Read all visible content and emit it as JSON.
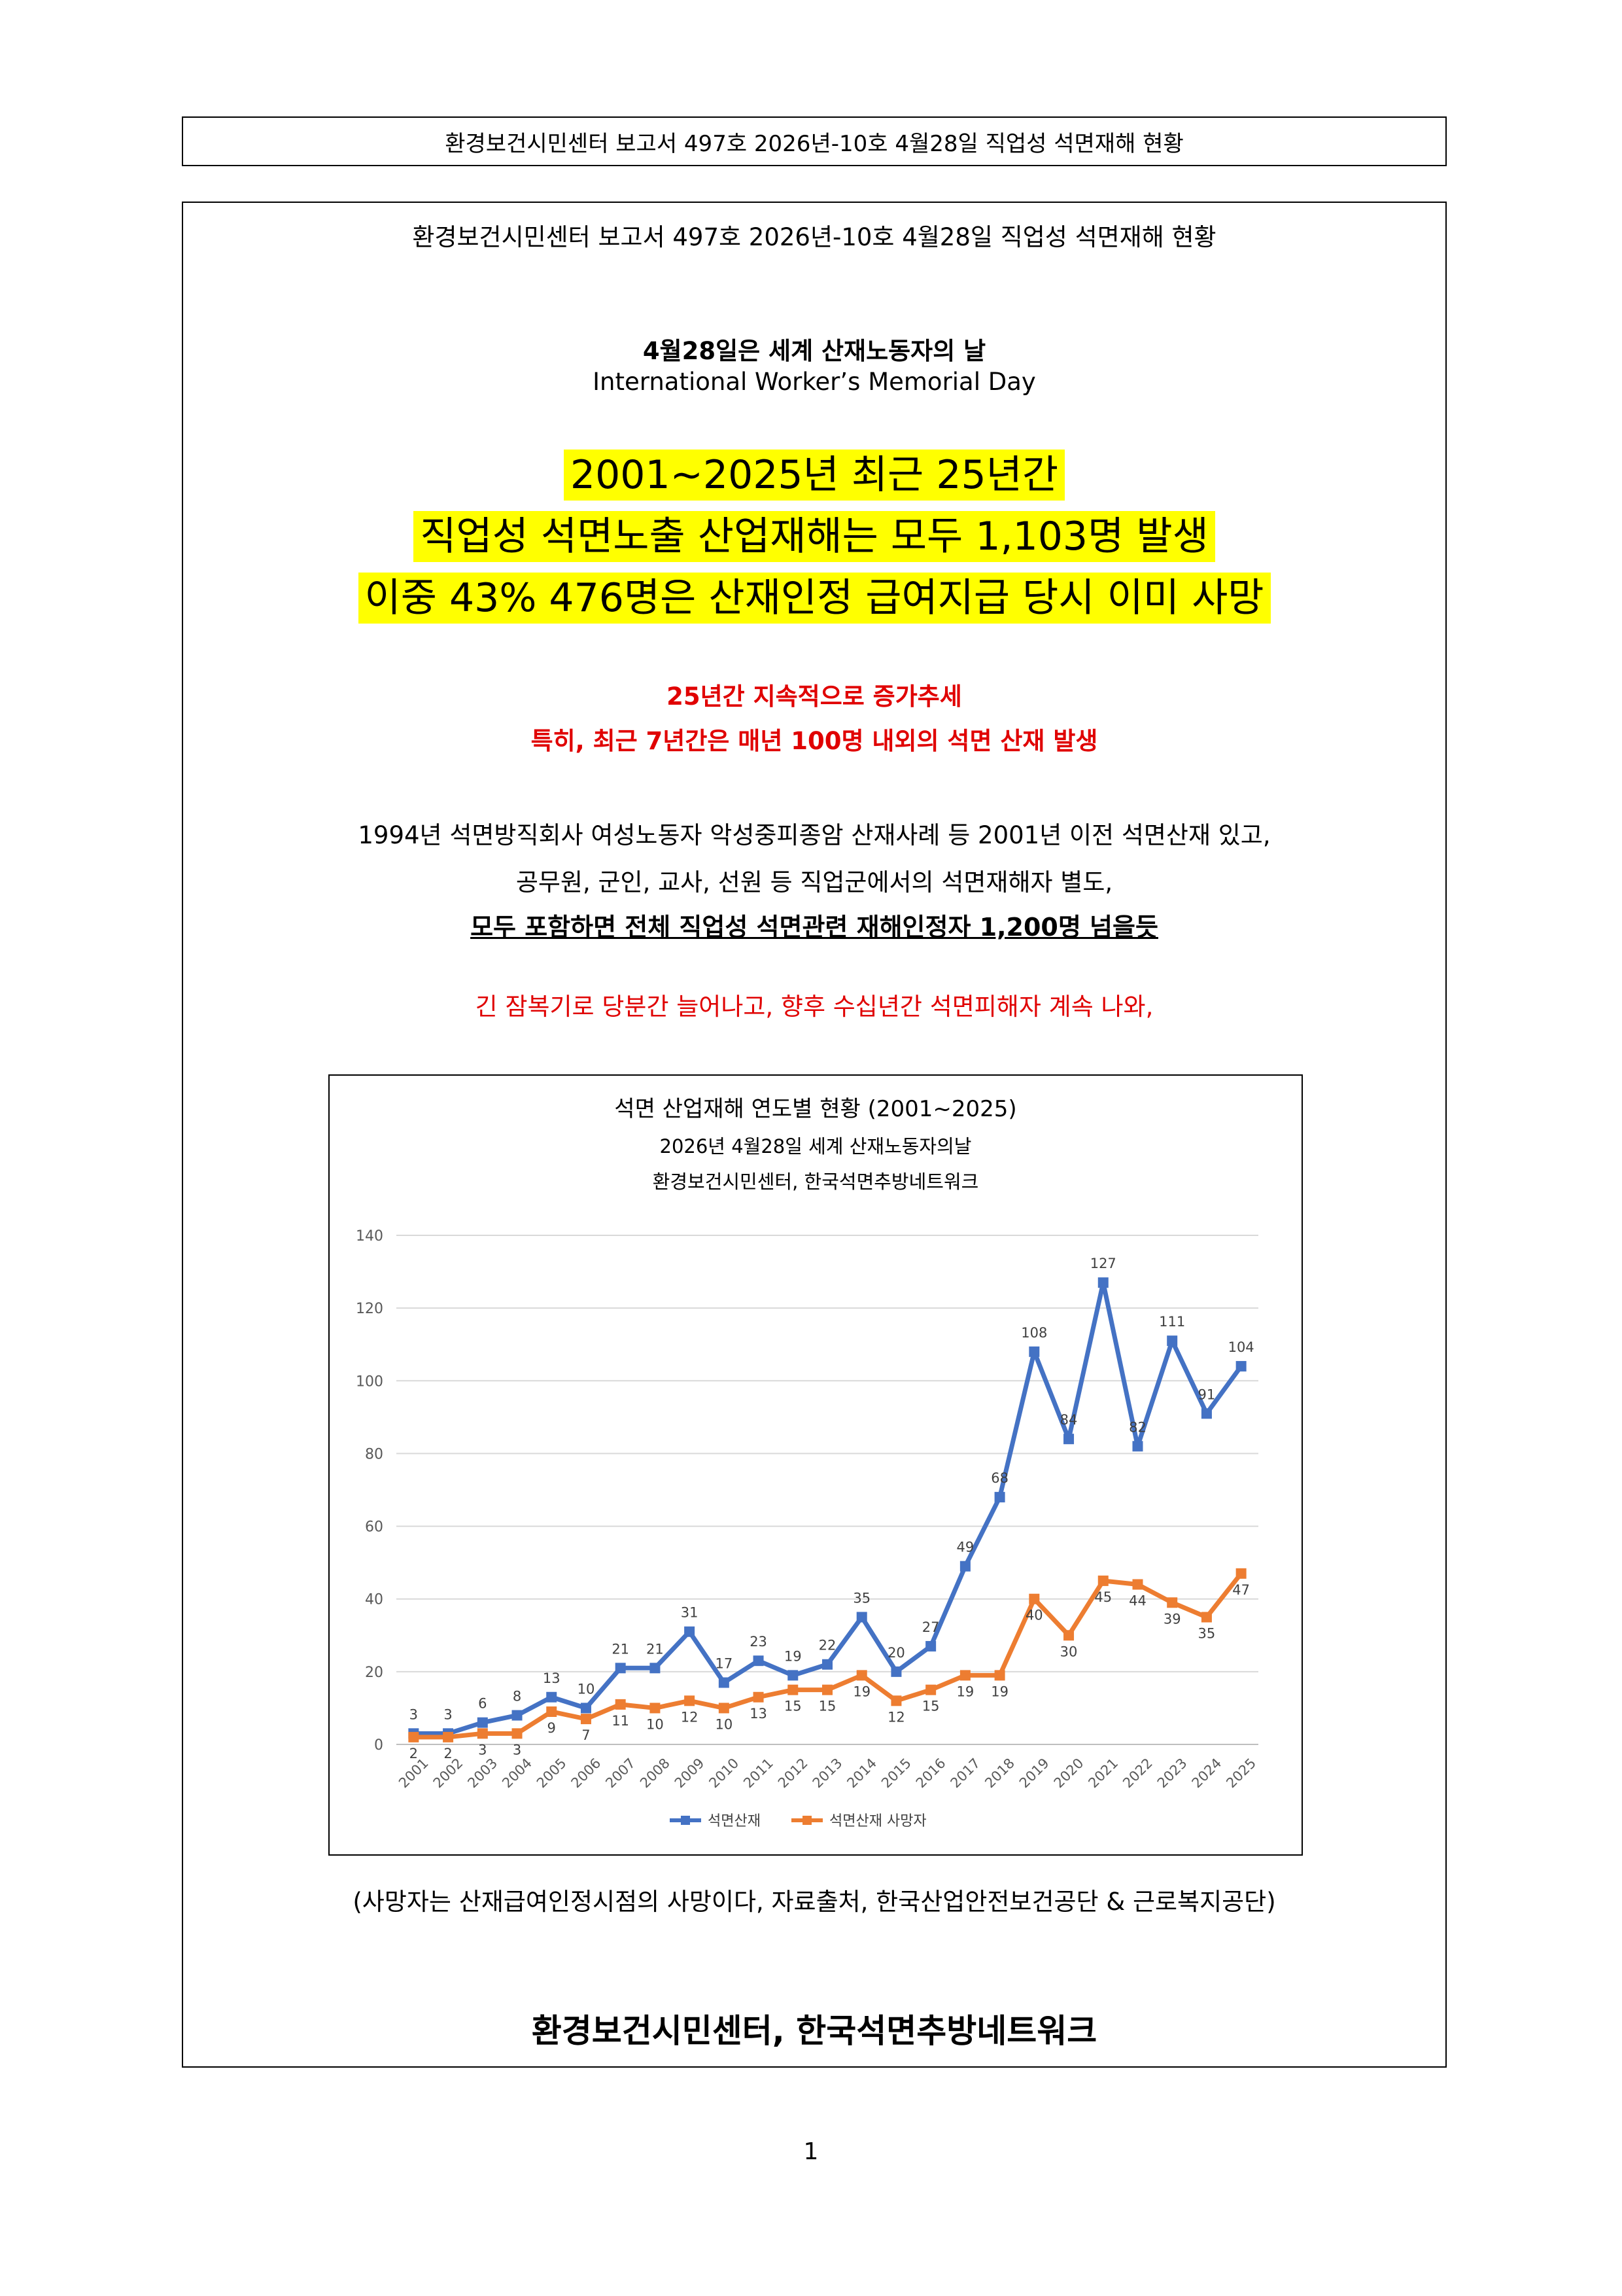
{
  "header": {
    "title": "환경보건시민센터 보고서 497호 2026년-10호 4월28일 직업성 석면재해 현황"
  },
  "document": {
    "subheading": "환경보건시민센터 보고서 497호 2026년-10호 4월28일 직업성 석면재해 현황",
    "memorial_ko": "4월28일은 세계 산재노동자의 날",
    "memorial_en": "International Worker’s Memorial Day",
    "highlight_lines": [
      "2001~2025년 최근 25년간",
      "직업성 석면노출 산업재해는 모두 1,103명 발생",
      "이중 43% 476명은 산재인정 급여지급 당시 이미 사망"
    ],
    "red_lines": [
      "25년간 지속적으로 증가추세",
      "특히, 최근 7년간은 매년 100명 내외의 석면 산재 발생"
    ],
    "paragraph_lines": [
      "1994년 석면방직회사 여성노동자 악성중피종암 산재사례 등 2001년 이전 석면산재 있고,",
      "공무원, 군인, 교사, 선원 등 직업군에서의 석면재해자 별도,"
    ],
    "underlined_line": "모두 포함하면 전체 직업성 석면관련 재해인정자 1,200명 넘을듯",
    "warning_line": "긴 잠복기로 당분간 늘어나고, 향후 수십년간 석면피해자 계속 나와,",
    "source_note": "(사망자는 산재급여인정시점의 사망이다, 자료출처, 한국산업안전보건공단 & 근로복지공단)",
    "footer_org": "환경보건시민센터, 한국석면추방네트워크",
    "page_number": "1"
  },
  "chart_data": {
    "type": "line",
    "title": "석면 산업재해 연도별 현황 (2001~2025)",
    "subtitle_lines": [
      "2026년 4월28일 세계 산재노동자의날",
      "환경보건시민센터, 한국석면추방네트워크"
    ],
    "categories": [
      "2001",
      "2002",
      "2003",
      "2004",
      "2005",
      "2006",
      "2007",
      "2008",
      "2009",
      "2010",
      "2011",
      "2012",
      "2013",
      "2014",
      "2015",
      "2016",
      "2017",
      "2018",
      "2019",
      "2020",
      "2021",
      "2022",
      "2023",
      "2024",
      "2025"
    ],
    "series": [
      {
        "name": "석면산재",
        "color": "#4472c4",
        "values": [
          3,
          3,
          6,
          8,
          13,
          10,
          21,
          21,
          31,
          17,
          23,
          19,
          22,
          35,
          20,
          27,
          49,
          68,
          108,
          84,
          127,
          82,
          111,
          91,
          104
        ]
      },
      {
        "name": "석면산재 사망자",
        "color": "#ed7d31",
        "values": [
          2,
          2,
          3,
          3,
          9,
          7,
          11,
          10,
          12,
          10,
          13,
          15,
          15,
          19,
          12,
          15,
          19,
          19,
          40,
          30,
          45,
          44,
          39,
          35,
          47
        ]
      }
    ],
    "ylim": [
      0,
      140
    ],
    "yticks": [
      0,
      20,
      40,
      60,
      80,
      100,
      120,
      140
    ],
    "grid": true,
    "legend_position": "bottom"
  }
}
